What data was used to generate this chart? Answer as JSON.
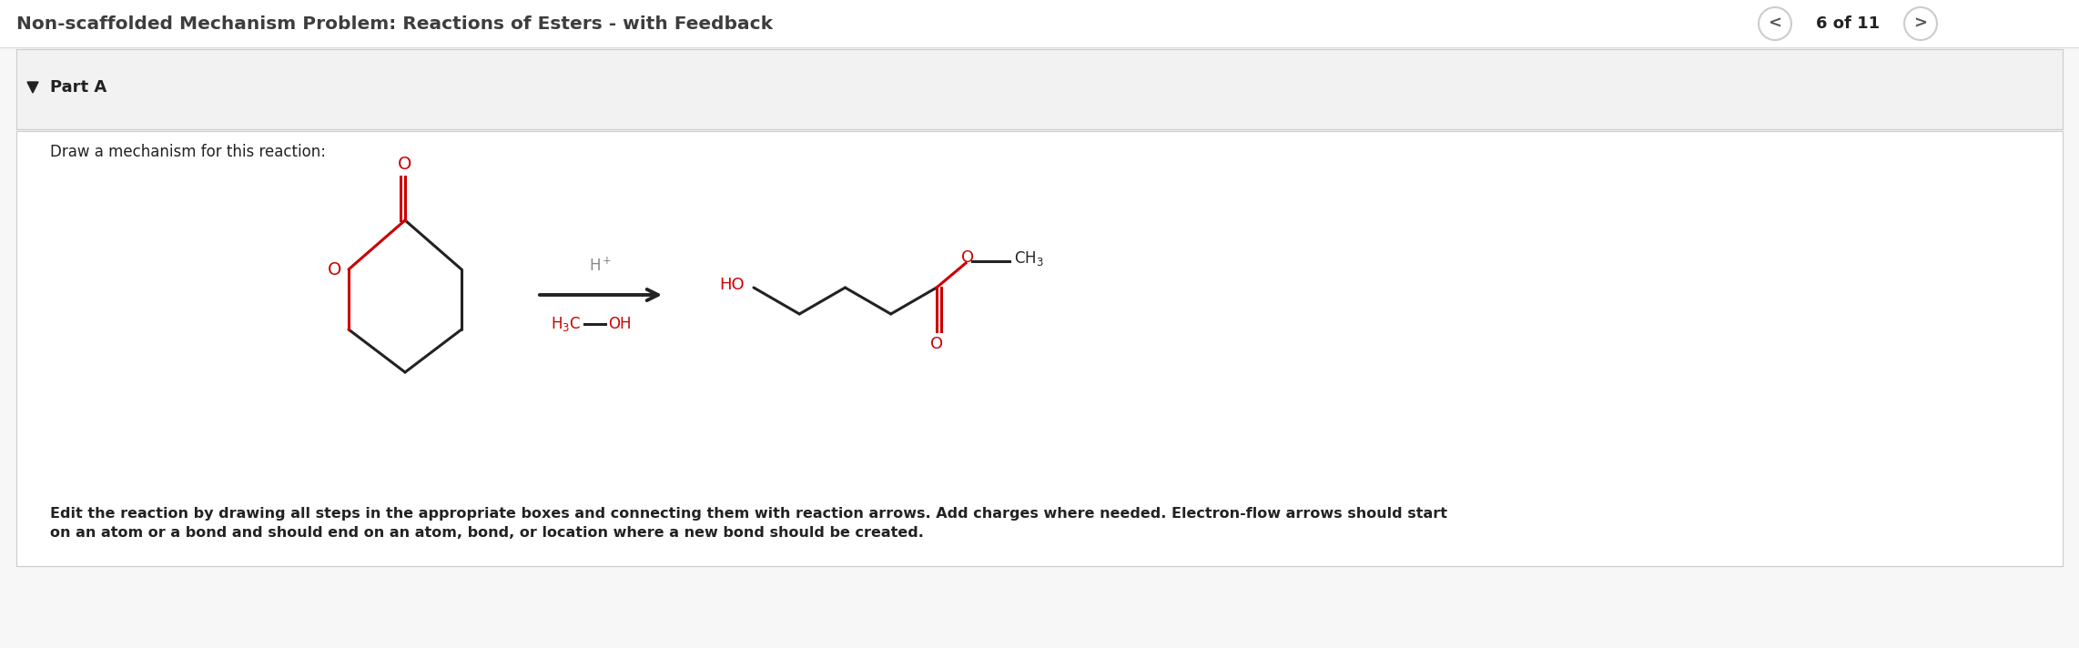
{
  "bg_color": "#f7f7f7",
  "white_bg": "#ffffff",
  "title": "Non-scaffolded Mechanism Problem: Reactions of Esters - with Feedback",
  "title_color": "#3d3d3d",
  "nav_text": "6 of 11",
  "part_label": "Part A",
  "instruction": "Draw a mechanism for this reaction:",
  "footer_line1": "Edit the reaction by drawing all steps in the appropriate boxes and connecting them with reaction arrows. Add charges where needed. Electron-flow arrows should start",
  "footer_line2": "on an atom or a bond and should end on an atom, bond, or location where a new bond should be created.",
  "red_color": "#cc0000",
  "black_color": "#222222",
  "gray_color": "#888888",
  "nav_circle_color": "#cccccc",
  "part_bg": "#f2f2f2",
  "content_bg": "#ffffff",
  "border_color": "#cccccc"
}
